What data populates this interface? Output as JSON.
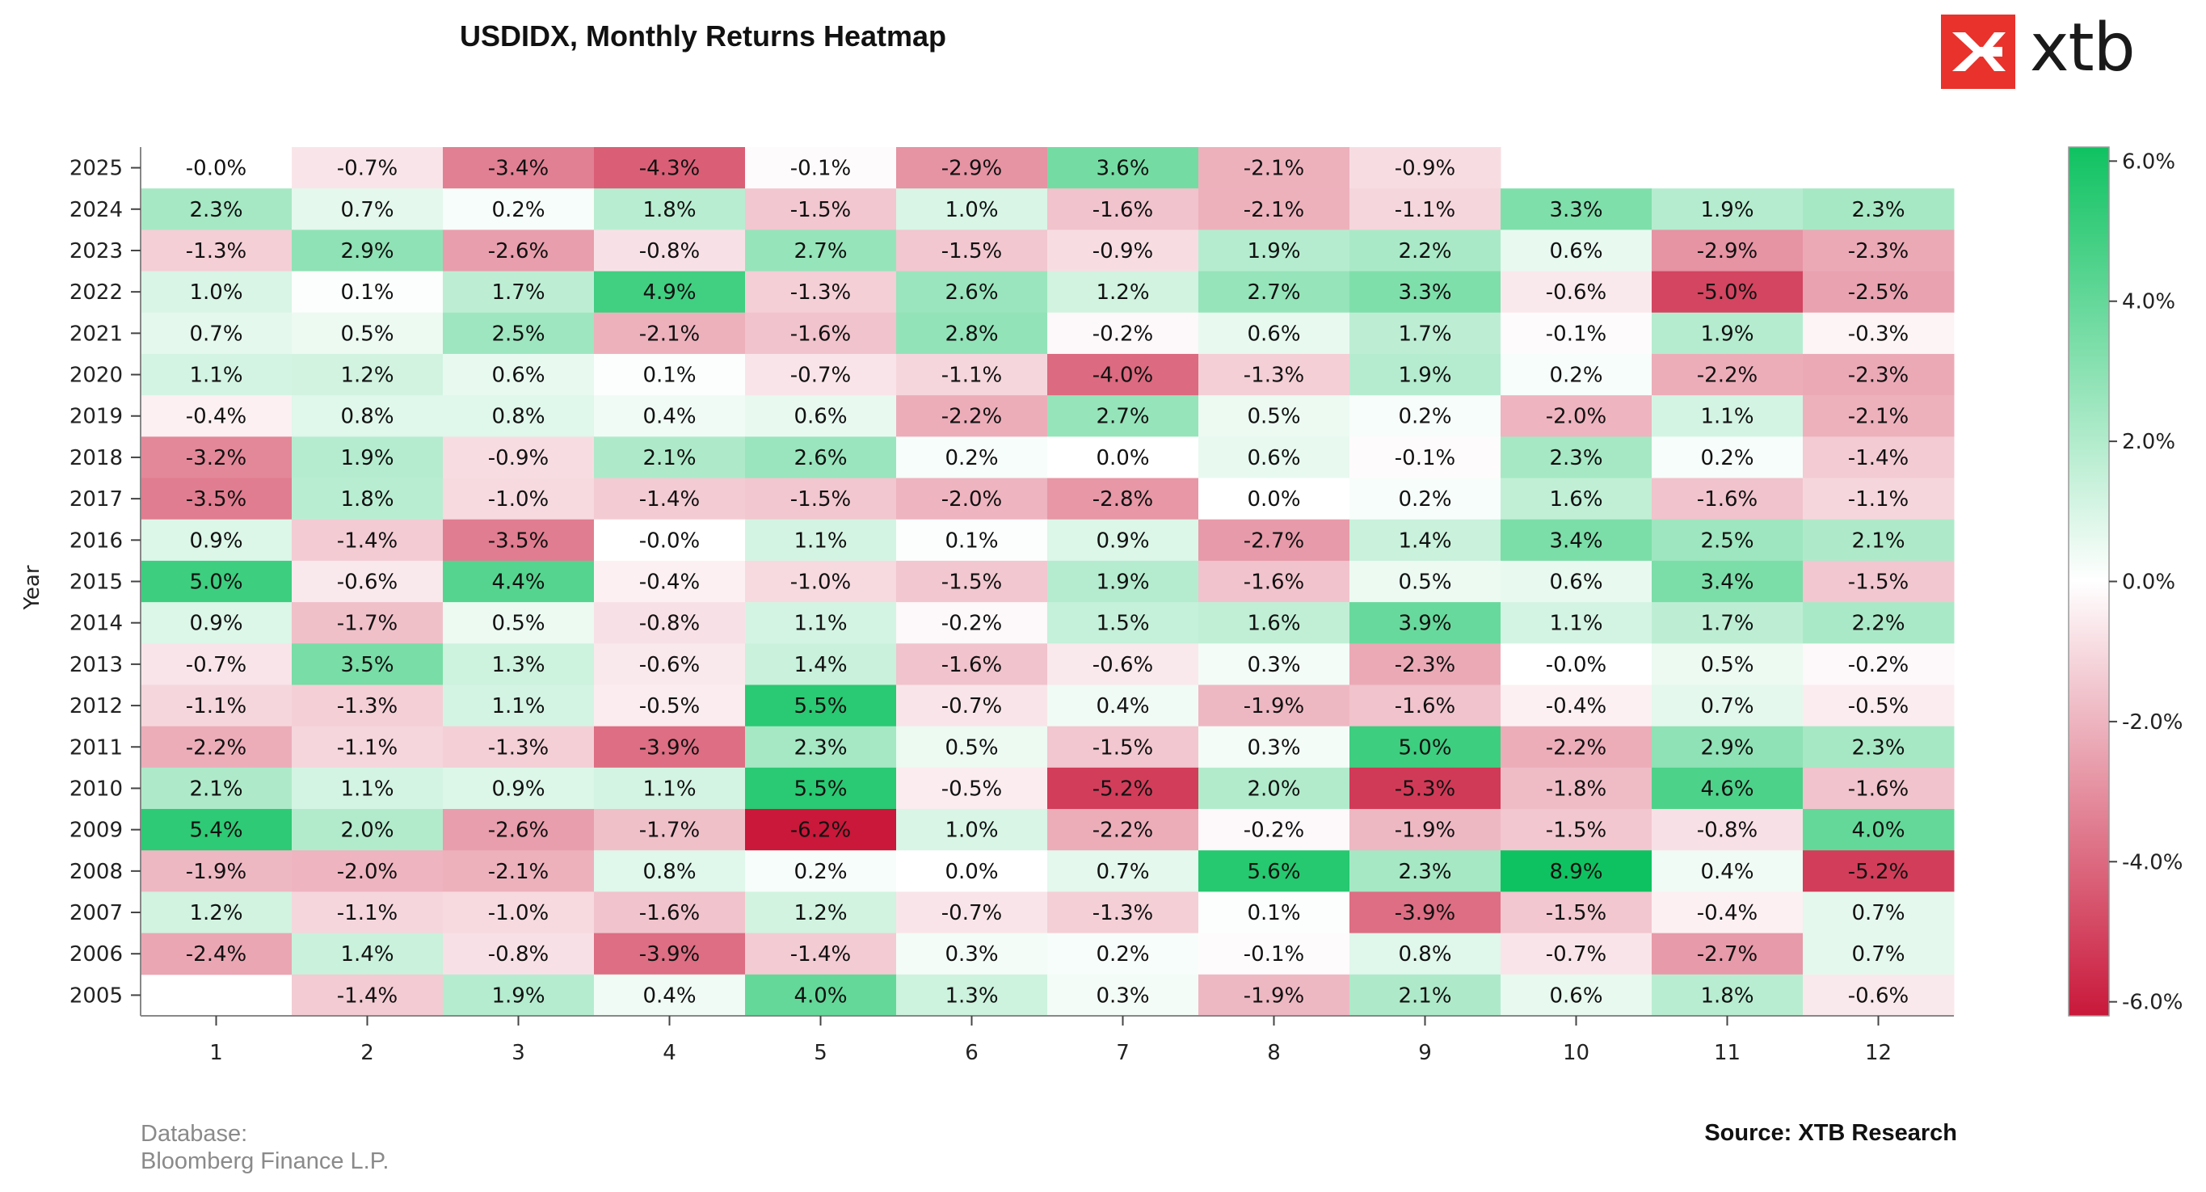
{
  "header": {
    "title": "USDIDX, Monthly Returns Heatmap"
  },
  "logo": {
    "text": "xtb",
    "color": "#e8322b",
    "icon": "xtb-x-icon"
  },
  "footer": {
    "database_label": "Database:",
    "database_value": "Bloomberg Finance L.P.",
    "source": "Source: XTB Research"
  },
  "colors": {
    "negative": "#c9183a",
    "zero": "#ffffff",
    "positive": "#0fc261"
  },
  "chart_data": {
    "type": "heatmap",
    "title": "USDIDX, Monthly Returns Heatmap",
    "xlabel": "",
    "ylabel": "Year",
    "x": [
      "1",
      "2",
      "3",
      "4",
      "5",
      "6",
      "7",
      "8",
      "9",
      "10",
      "11",
      "12"
    ],
    "y": [
      "2025",
      "2024",
      "2023",
      "2022",
      "2021",
      "2020",
      "2019",
      "2018",
      "2017",
      "2016",
      "2015",
      "2014",
      "2013",
      "2012",
      "2011",
      "2010",
      "2009",
      "2008",
      "2007",
      "2006",
      "2005"
    ],
    "values": [
      [
        -0.0,
        -0.7,
        -3.4,
        -4.3,
        -0.1,
        -2.9,
        3.6,
        -2.1,
        -0.9,
        null,
        null,
        null
      ],
      [
        2.3,
        0.7,
        0.2,
        1.8,
        -1.5,
        1.0,
        -1.6,
        -2.1,
        -1.1,
        3.3,
        1.9,
        2.3
      ],
      [
        -1.3,
        2.9,
        -2.6,
        -0.8,
        2.7,
        -1.5,
        -0.9,
        1.9,
        2.2,
        0.6,
        -2.9,
        -2.3
      ],
      [
        1.0,
        0.1,
        1.7,
        4.9,
        -1.3,
        2.6,
        1.2,
        2.7,
        3.3,
        -0.6,
        -5.0,
        -2.5
      ],
      [
        0.7,
        0.5,
        2.5,
        -2.1,
        -1.6,
        2.8,
        -0.2,
        0.6,
        1.7,
        -0.1,
        1.9,
        -0.3
      ],
      [
        1.1,
        1.2,
        0.6,
        0.1,
        -0.7,
        -1.1,
        -4.0,
        -1.3,
        1.9,
        0.2,
        -2.2,
        -2.3
      ],
      [
        -0.4,
        0.8,
        0.8,
        0.4,
        0.6,
        -2.2,
        2.7,
        0.5,
        0.2,
        -2.0,
        1.1,
        -2.1
      ],
      [
        -3.2,
        1.9,
        -0.9,
        2.1,
        2.6,
        0.2,
        0.0,
        0.6,
        -0.1,
        2.3,
        0.2,
        -1.4
      ],
      [
        -3.5,
        1.8,
        -1.0,
        -1.4,
        -1.5,
        -2.0,
        -2.8,
        0.0,
        0.2,
        1.6,
        -1.6,
        -1.1
      ],
      [
        0.9,
        -1.4,
        -3.5,
        -0.0,
        1.1,
        0.1,
        0.9,
        -2.7,
        1.4,
        3.4,
        2.5,
        2.1
      ],
      [
        5.0,
        -0.6,
        4.4,
        -0.4,
        -1.0,
        -1.5,
        1.9,
        -1.6,
        0.5,
        0.6,
        3.4,
        -1.5
      ],
      [
        0.9,
        -1.7,
        0.5,
        -0.8,
        1.1,
        -0.2,
        1.5,
        1.6,
        3.9,
        1.1,
        1.7,
        2.2
      ],
      [
        -0.7,
        3.5,
        1.3,
        -0.6,
        1.4,
        -1.6,
        -0.6,
        0.3,
        -2.3,
        -0.0,
        0.5,
        -0.2
      ],
      [
        -1.1,
        -1.3,
        1.1,
        -0.5,
        5.5,
        -0.7,
        0.4,
        -1.9,
        -1.6,
        -0.4,
        0.7,
        -0.5
      ],
      [
        -2.2,
        -1.1,
        -1.3,
        -3.9,
        2.3,
        0.5,
        -1.5,
        0.3,
        5.0,
        -2.2,
        2.9,
        2.3
      ],
      [
        2.1,
        1.1,
        0.9,
        1.1,
        5.5,
        -0.5,
        -5.2,
        2.0,
        -5.3,
        -1.8,
        4.6,
        -1.6
      ],
      [
        5.4,
        2.0,
        -2.6,
        -1.7,
        -6.2,
        1.0,
        -2.2,
        -0.2,
        -1.9,
        -1.5,
        -0.8,
        4.0
      ],
      [
        -1.9,
        -2.0,
        -2.1,
        0.8,
        0.2,
        0.0,
        0.7,
        5.6,
        2.3,
        8.9,
        0.4,
        -5.2
      ],
      [
        1.2,
        -1.1,
        -1.0,
        -1.6,
        1.2,
        -0.7,
        -1.3,
        0.1,
        -3.9,
        -1.5,
        -0.4,
        0.7
      ],
      [
        -2.4,
        1.4,
        -0.8,
        -3.9,
        -1.4,
        0.3,
        0.2,
        -0.1,
        0.8,
        -0.7,
        -2.7,
        0.7
      ],
      [
        null,
        -1.4,
        1.9,
        0.4,
        4.0,
        1.3,
        0.3,
        -1.9,
        2.1,
        0.6,
        1.8,
        -0.6
      ]
    ],
    "labels": [
      [
        "-0.0%",
        "-0.7%",
        "-3.4%",
        "-4.3%",
        "-0.1%",
        "-2.9%",
        "3.6%",
        "-2.1%",
        "-0.9%",
        "",
        "",
        ""
      ],
      [
        "2.3%",
        "0.7%",
        "0.2%",
        "1.8%",
        "-1.5%",
        "1.0%",
        "-1.6%",
        "-2.1%",
        "-1.1%",
        "3.3%",
        "1.9%",
        "2.3%"
      ],
      [
        "-1.3%",
        "2.9%",
        "-2.6%",
        "-0.8%",
        "2.7%",
        "-1.5%",
        "-0.9%",
        "1.9%",
        "2.2%",
        "0.6%",
        "-2.9%",
        "-2.3%"
      ],
      [
        "1.0%",
        "0.1%",
        "1.7%",
        "4.9%",
        "-1.3%",
        "2.6%",
        "1.2%",
        "2.7%",
        "3.3%",
        "-0.6%",
        "-5.0%",
        "-2.5%"
      ],
      [
        "0.7%",
        "0.5%",
        "2.5%",
        "-2.1%",
        "-1.6%",
        "2.8%",
        "-0.2%",
        "0.6%",
        "1.7%",
        "-0.1%",
        "1.9%",
        "-0.3%"
      ],
      [
        "1.1%",
        "1.2%",
        "0.6%",
        "0.1%",
        "-0.7%",
        "-1.1%",
        "-4.0%",
        "-1.3%",
        "1.9%",
        "0.2%",
        "-2.2%",
        "-2.3%"
      ],
      [
        "-0.4%",
        "0.8%",
        "0.8%",
        "0.4%",
        "0.6%",
        "-2.2%",
        "2.7%",
        "0.5%",
        "0.2%",
        "-2.0%",
        "1.1%",
        "-2.1%"
      ],
      [
        "-3.2%",
        "1.9%",
        "-0.9%",
        "2.1%",
        "2.6%",
        "0.2%",
        "0.0%",
        "0.6%",
        "-0.1%",
        "2.3%",
        "0.2%",
        "-1.4%"
      ],
      [
        "-3.5%",
        "1.8%",
        "-1.0%",
        "-1.4%",
        "-1.5%",
        "-2.0%",
        "-2.8%",
        "0.0%",
        "0.2%",
        "1.6%",
        "-1.6%",
        "-1.1%"
      ],
      [
        "0.9%",
        "-1.4%",
        "-3.5%",
        "-0.0%",
        "1.1%",
        "0.1%",
        "0.9%",
        "-2.7%",
        "1.4%",
        "3.4%",
        "2.5%",
        "2.1%"
      ],
      [
        "5.0%",
        "-0.6%",
        "4.4%",
        "-0.4%",
        "-1.0%",
        "-1.5%",
        "1.9%",
        "-1.6%",
        "0.5%",
        "0.6%",
        "3.4%",
        "-1.5%"
      ],
      [
        "0.9%",
        "-1.7%",
        "0.5%",
        "-0.8%",
        "1.1%",
        "-0.2%",
        "1.5%",
        "1.6%",
        "3.9%",
        "1.1%",
        "1.7%",
        "2.2%"
      ],
      [
        "-0.7%",
        "3.5%",
        "1.3%",
        "-0.6%",
        "1.4%",
        "-1.6%",
        "-0.6%",
        "0.3%",
        "-2.3%",
        "-0.0%",
        "0.5%",
        "-0.2%"
      ],
      [
        "-1.1%",
        "-1.3%",
        "1.1%",
        "-0.5%",
        "5.5%",
        "-0.7%",
        "0.4%",
        "-1.9%",
        "-1.6%",
        "-0.4%",
        "0.7%",
        "-0.5%"
      ],
      [
        "-2.2%",
        "-1.1%",
        "-1.3%",
        "-3.9%",
        "2.3%",
        "0.5%",
        "-1.5%",
        "0.3%",
        "5.0%",
        "-2.2%",
        "2.9%",
        "2.3%"
      ],
      [
        "2.1%",
        "1.1%",
        "0.9%",
        "1.1%",
        "5.5%",
        "-0.5%",
        "-5.2%",
        "2.0%",
        "-5.3%",
        "-1.8%",
        "4.6%",
        "-1.6%"
      ],
      [
        "5.4%",
        "2.0%",
        "-2.6%",
        "-1.7%",
        "-6.2%",
        "1.0%",
        "-2.2%",
        "-0.2%",
        "-1.9%",
        "-1.5%",
        "-0.8%",
        "4.0%"
      ],
      [
        "-1.9%",
        "-2.0%",
        "-2.1%",
        "0.8%",
        "0.2%",
        "0.0%",
        "0.7%",
        "5.6%",
        "2.3%",
        "8.9%",
        "0.4%",
        "-5.2%"
      ],
      [
        "1.2%",
        "-1.1%",
        "-1.0%",
        "-1.6%",
        "1.2%",
        "-0.7%",
        "-1.3%",
        "0.1%",
        "-3.9%",
        "-1.5%",
        "-0.4%",
        "0.7%"
      ],
      [
        "-2.4%",
        "1.4%",
        "-0.8%",
        "-3.9%",
        "-1.4%",
        "0.3%",
        "0.2%",
        "-0.1%",
        "0.8%",
        "-0.7%",
        "-2.7%",
        "0.7%"
      ],
      [
        "",
        "-1.4%",
        "1.9%",
        "0.4%",
        "4.0%",
        "1.3%",
        "0.3%",
        "-1.9%",
        "2.1%",
        "0.6%",
        "1.8%",
        "-0.6%"
      ]
    ],
    "color_scale": {
      "min": -6.2,
      "max": 6.2,
      "center": 0
    },
    "colorbar_ticks": [
      "6.0%",
      "4.0%",
      "2.0%",
      "0.0%",
      "-2.0%",
      "-4.0%",
      "-6.0%"
    ],
    "colorbar_tick_values": [
      6,
      4,
      2,
      0,
      -2,
      -4,
      -6
    ]
  }
}
